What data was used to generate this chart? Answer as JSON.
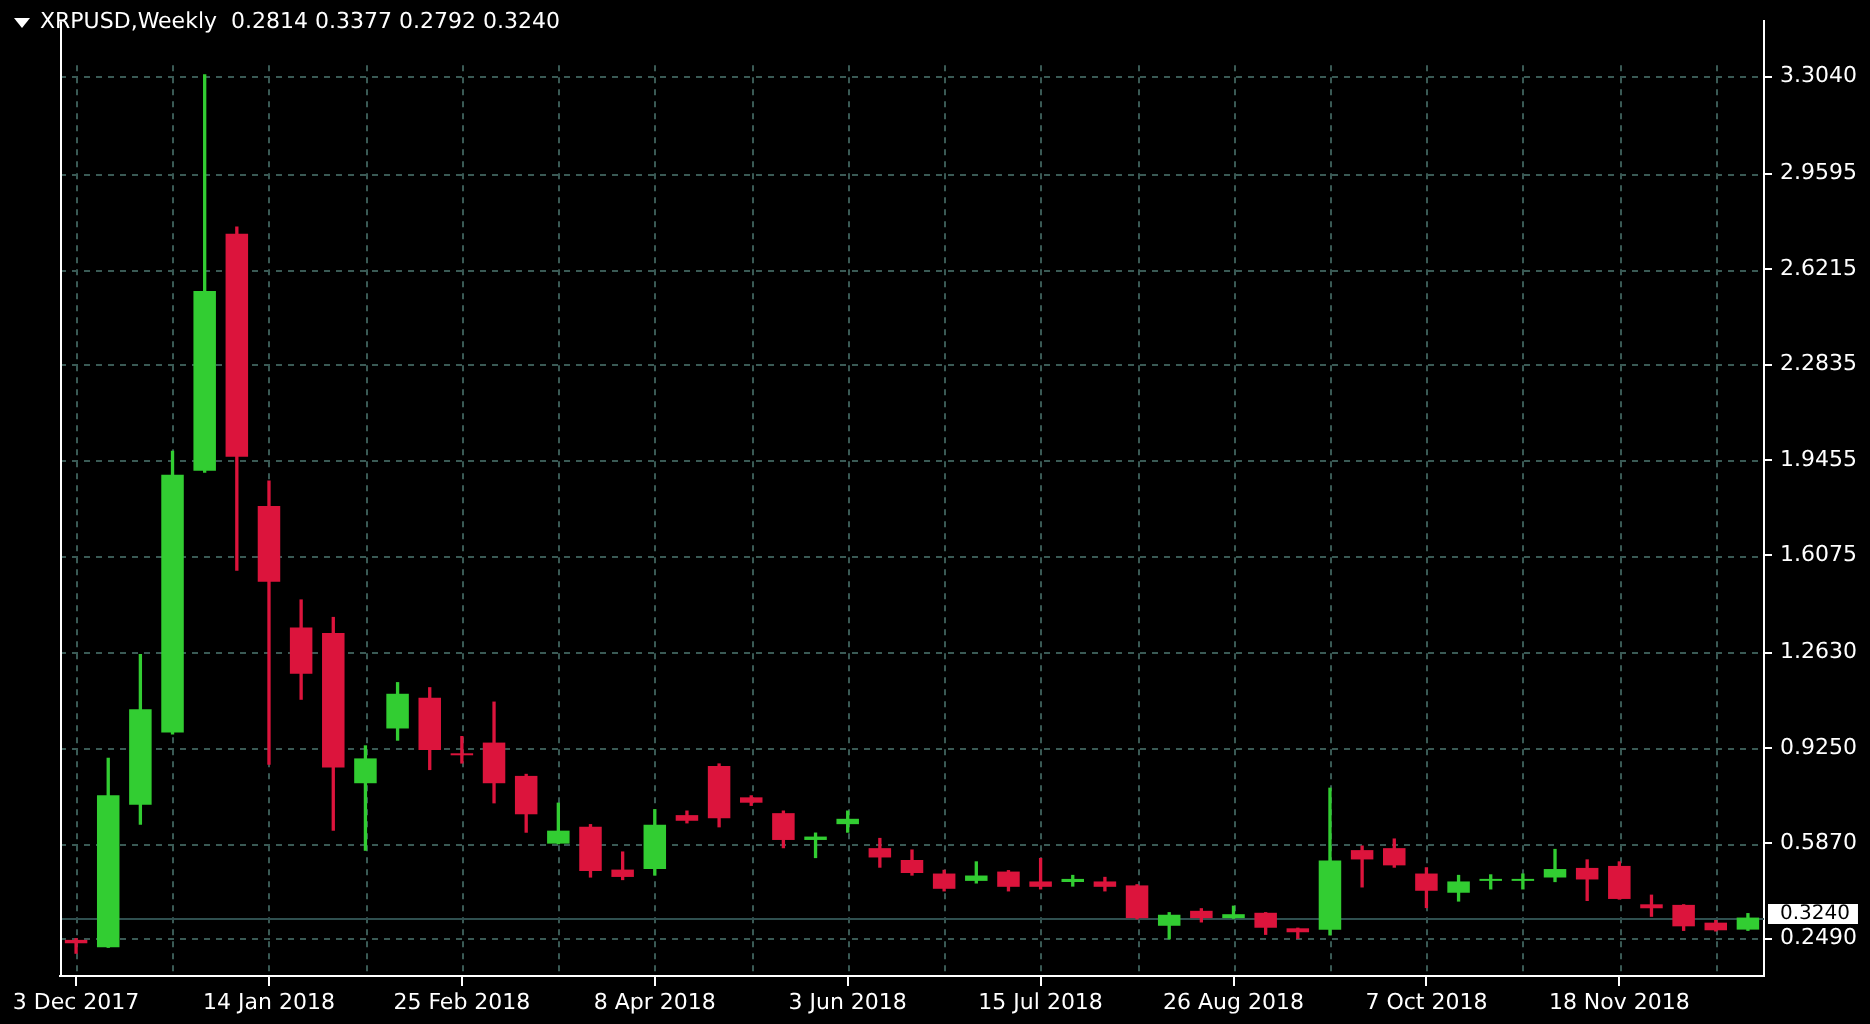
{
  "chart_data": {
    "type": "candlestick",
    "title": "XRPUSD,Weekly  0.2814 0.3377 0.2792 0.3240",
    "categories": [
      "3 Dec 2017",
      null,
      null,
      null,
      null,
      null,
      "14 Jan 2018",
      null,
      null,
      null,
      null,
      null,
      "25 Feb 2018",
      null,
      null,
      null,
      null,
      null,
      "8 Apr 2018",
      null,
      null,
      null,
      null,
      null,
      "3 Jun 2018",
      null,
      null,
      null,
      null,
      null,
      "15 Jul 2018",
      null,
      null,
      null,
      null,
      null,
      "26 Aug 2018",
      null,
      null,
      null,
      null,
      null,
      "7 Oct 2018",
      null,
      null,
      null,
      null,
      null,
      "18 Nov 2018",
      null,
      null,
      null,
      null
    ],
    "ohlc": [
      [
        0.245,
        0.249,
        0.198,
        0.233
      ],
      [
        0.219,
        0.888,
        0.219,
        0.757
      ],
      [
        0.724,
        1.256,
        0.655,
        1.062
      ],
      [
        0.98,
        1.976,
        0.975,
        1.893
      ],
      [
        1.907,
        3.31,
        1.902,
        2.544
      ],
      [
        2.747,
        2.77,
        1.555,
        1.957
      ],
      [
        1.782,
        1.87,
        0.868,
        1.514
      ],
      [
        1.352,
        1.449,
        1.098,
        1.188
      ],
      [
        1.332,
        1.387,
        0.634,
        0.856
      ],
      [
        0.8,
        0.932,
        0.563,
        0.888
      ],
      [
        0.994,
        1.156,
        0.953,
        1.117
      ],
      [
        1.103,
        1.138,
        0.849,
        0.918
      ],
      [
        0.902,
        0.965,
        0.872,
        0.899
      ],
      [
        0.944,
        1.087,
        0.731,
        0.8
      ],
      [
        0.826,
        0.831,
        0.627,
        0.69
      ],
      [
        0.586,
        0.729,
        0.586,
        0.632
      ],
      [
        0.646,
        0.653,
        0.468,
        0.489
      ],
      [
        0.494,
        0.556,
        0.459,
        0.468
      ],
      [
        0.496,
        0.706,
        0.475,
        0.653
      ],
      [
        0.687,
        0.701,
        0.66,
        0.667
      ],
      [
        0.861,
        0.868,
        0.646,
        0.676
      ],
      [
        0.75,
        0.755,
        0.722,
        0.731
      ],
      [
        0.694,
        0.701,
        0.572,
        0.599
      ],
      [
        0.599,
        0.623,
        0.537,
        0.611
      ],
      [
        0.655,
        0.701,
        0.627,
        0.674
      ],
      [
        0.57,
        0.604,
        0.503,
        0.537
      ],
      [
        0.528,
        0.563,
        0.475,
        0.482
      ],
      [
        0.48,
        0.491,
        0.419,
        0.426
      ],
      [
        0.454,
        0.521,
        0.447,
        0.473
      ],
      [
        0.487,
        0.49,
        0.419,
        0.433
      ],
      [
        0.452,
        0.533,
        0.426,
        0.433
      ],
      [
        0.45,
        0.473,
        0.436,
        0.461
      ],
      [
        0.452,
        0.466,
        0.419,
        0.433
      ],
      [
        0.438,
        0.44,
        0.32,
        0.322
      ],
      [
        0.295,
        0.341,
        0.249,
        0.334
      ],
      [
        0.348,
        0.355,
        0.309,
        0.322
      ],
      [
        0.322,
        0.364,
        0.322,
        0.336
      ],
      [
        0.341,
        0.341,
        0.265,
        0.288
      ],
      [
        0.286,
        0.286,
        0.251,
        0.272
      ],
      [
        0.281,
        0.782,
        0.263,
        0.526
      ],
      [
        0.563,
        0.577,
        0.433,
        0.53
      ],
      [
        0.57,
        0.602,
        0.503,
        0.509
      ],
      [
        0.48,
        0.5,
        0.36,
        0.419
      ],
      [
        0.412,
        0.473,
        0.383,
        0.452
      ],
      [
        0.454,
        0.475,
        0.426,
        0.461
      ],
      [
        0.454,
        0.478,
        0.426,
        0.459
      ],
      [
        0.466,
        0.565,
        0.452,
        0.496
      ],
      [
        0.5,
        0.528,
        0.385,
        0.459
      ],
      [
        0.507,
        0.521,
        0.39,
        0.39
      ],
      [
        0.371,
        0.403,
        0.329,
        0.357
      ],
      [
        0.369,
        0.369,
        0.279,
        0.293
      ],
      [
        0.306,
        0.313,
        0.277,
        0.279
      ],
      [
        0.2814,
        0.3377,
        0.2792,
        0.324
      ]
    ],
    "colors": [
      "#dc143c",
      "#32cd32",
      "#32cd32",
      "#32cd32",
      "#32cd32",
      "#dc143c",
      "#dc143c",
      "#dc143c",
      "#dc143c",
      "#32cd32",
      "#32cd32",
      "#dc143c",
      "#dc143c",
      "#dc143c",
      "#dc143c",
      "#32cd32",
      "#dc143c",
      "#dc143c",
      "#32cd32",
      "#dc143c",
      "#dc143c",
      "#dc143c",
      "#dc143c",
      "#32cd32",
      "#32cd32",
      "#dc143c",
      "#dc143c",
      "#dc143c",
      "#32cd32",
      "#dc143c",
      "#dc143c",
      "#32cd32",
      "#dc143c",
      "#dc143c",
      "#32cd32",
      "#dc143c",
      "#32cd32",
      "#dc143c",
      "#dc143c",
      "#32cd32",
      "#dc143c",
      "#dc143c",
      "#dc143c",
      "#32cd32",
      "#32cd32",
      "#32cd32",
      "#32cd32",
      "#dc143c",
      "#dc143c",
      "#dc143c",
      "#dc143c",
      "#dc143c",
      "#32cd32"
    ],
    "ylim": [
      0.117,
      3.5
    ],
    "yticks": [
      {
        "value": 0.249,
        "label": "0.2490"
      },
      {
        "value": 0.587,
        "label": "0.5870"
      },
      {
        "value": 0.925,
        "label": "0.9250"
      },
      {
        "value": 1.263,
        "label": "1.2630"
      },
      {
        "value": 1.6075,
        "label": "1.6075"
      },
      {
        "value": 1.9455,
        "label": "1.9455"
      },
      {
        "value": 2.2835,
        "label": "2.2835"
      },
      {
        "value": 2.6215,
        "label": "2.6215"
      },
      {
        "value": 2.9595,
        "label": "2.9595"
      },
      {
        "value": 3.304,
        "label": "3.3040"
      }
    ],
    "grid": true,
    "ref_lines": [
      {
        "axis": "y",
        "value": 0.324,
        "label": "0.3240",
        "color": "#2f4f4f"
      }
    ]
  }
}
